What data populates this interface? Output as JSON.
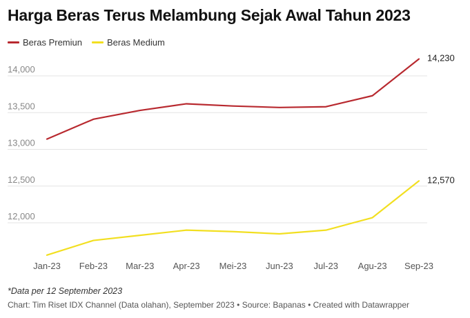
{
  "header": {
    "title": "Harga Beras Terus Melambung Sejak Awal Tahun 2023"
  },
  "footer": {
    "note": "*Data per 12 September 2023",
    "source": "Chart: Tim Riset IDX Channel (Data olahan), September 2023 • Source: Bapanas • Created with Datawrapper"
  },
  "colors": {
    "premium": "#b8292f",
    "medium": "#f2df20",
    "grid": "#e3e3e3",
    "tick_text": "#888888"
  },
  "chart_data": {
    "type": "line",
    "title": "Harga Beras Terus Melambung Sejak Awal Tahun 2023",
    "xlabel": "",
    "ylabel": "",
    "categories": [
      "Jan-23",
      "Feb-23",
      "Mar-23",
      "Apr-23",
      "Mei-23",
      "Jun-23",
      "Jul-23",
      "Agu-23",
      "Sep-23"
    ],
    "yticks": [
      12000,
      12500,
      13000,
      13500,
      14000
    ],
    "ytick_labels": [
      "12,000",
      "12,500",
      "13,000",
      "13,500",
      "14,000"
    ],
    "ylim": [
      11500,
      14400
    ],
    "grid": true,
    "legend": "top-left",
    "series": [
      {
        "name": "Beras Premiun",
        "color": "#b8292f",
        "values": [
          13140,
          13410,
          13530,
          13620,
          13590,
          13570,
          13580,
          13730,
          14230
        ],
        "end_label": "14,230"
      },
      {
        "name": "Beras Medium",
        "color": "#f2df20",
        "values": [
          11560,
          11760,
          11830,
          11900,
          11880,
          11850,
          11900,
          12070,
          12570
        ],
        "end_label": "12,570"
      }
    ]
  }
}
